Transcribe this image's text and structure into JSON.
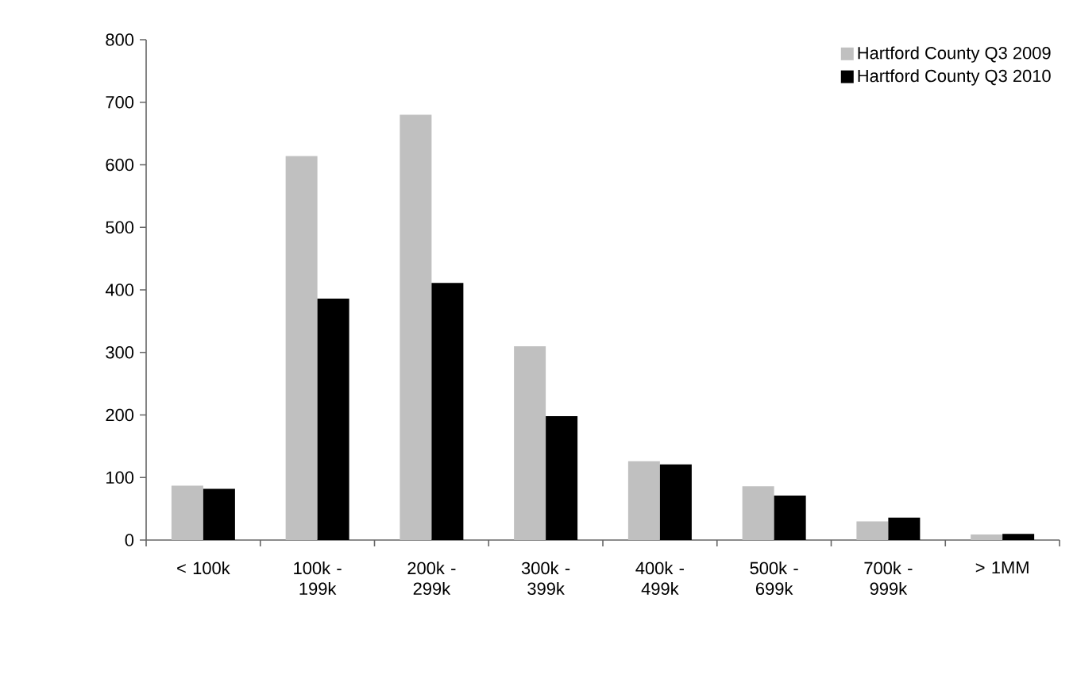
{
  "chart_data": {
    "type": "bar",
    "categories": [
      "< 100k",
      "100k - 199k",
      "200k - 299k",
      "300k - 399k",
      "400k - 499k",
      "500k - 699k",
      "700k - 999k",
      "> 1MM"
    ],
    "series": [
      {
        "name": "Hartford County Q3 2009",
        "color": "#c0c0c0",
        "values": [
          87,
          614,
          680,
          310,
          126,
          86,
          30,
          9
        ]
      },
      {
        "name": "Hartford County Q3 2010",
        "color": "#000000",
        "values": [
          82,
          386,
          411,
          198,
          121,
          71,
          36,
          10
        ]
      }
    ],
    "ylim": [
      0,
      800
    ],
    "yticks": [
      0,
      100,
      200,
      300,
      400,
      500,
      600,
      700,
      800
    ],
    "grid": false,
    "legend": "top right"
  }
}
